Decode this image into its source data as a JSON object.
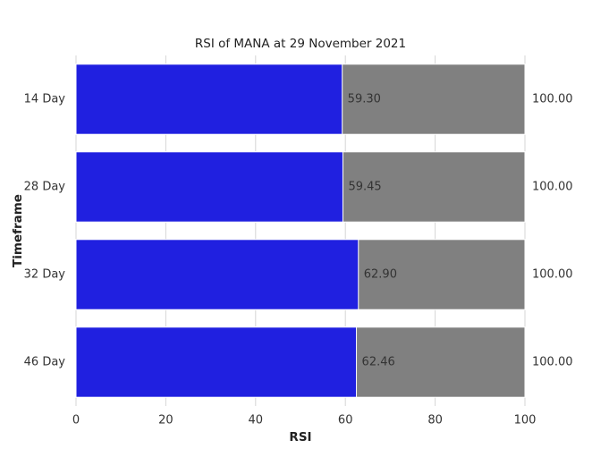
{
  "chart_data": {
    "type": "bar",
    "orientation": "horizontal",
    "overlay": true,
    "title": "RSI of MANA at 29 November 2021",
    "xlabel": "RSI",
    "ylabel": "Timeframe",
    "categories": [
      "14 Day",
      "28 Day",
      "32 Day",
      "46 Day"
    ],
    "series": [
      {
        "color": "#808080",
        "values": [
          100,
          100,
          100,
          100
        ],
        "value_labels": [
          "100.00",
          "100.00",
          "100.00",
          "100.00"
        ],
        "label_position": "outside"
      },
      {
        "color": "#2020e0",
        "values": [
          59.3,
          59.45,
          62.9,
          62.46
        ],
        "value_labels": [
          "59.30",
          "59.45",
          "62.90",
          "62.46"
        ],
        "label_position": "end"
      }
    ],
    "xlim": [
      0,
      100
    ],
    "xticks": [
      0,
      20,
      40,
      60,
      80,
      100
    ],
    "grid": true
  }
}
